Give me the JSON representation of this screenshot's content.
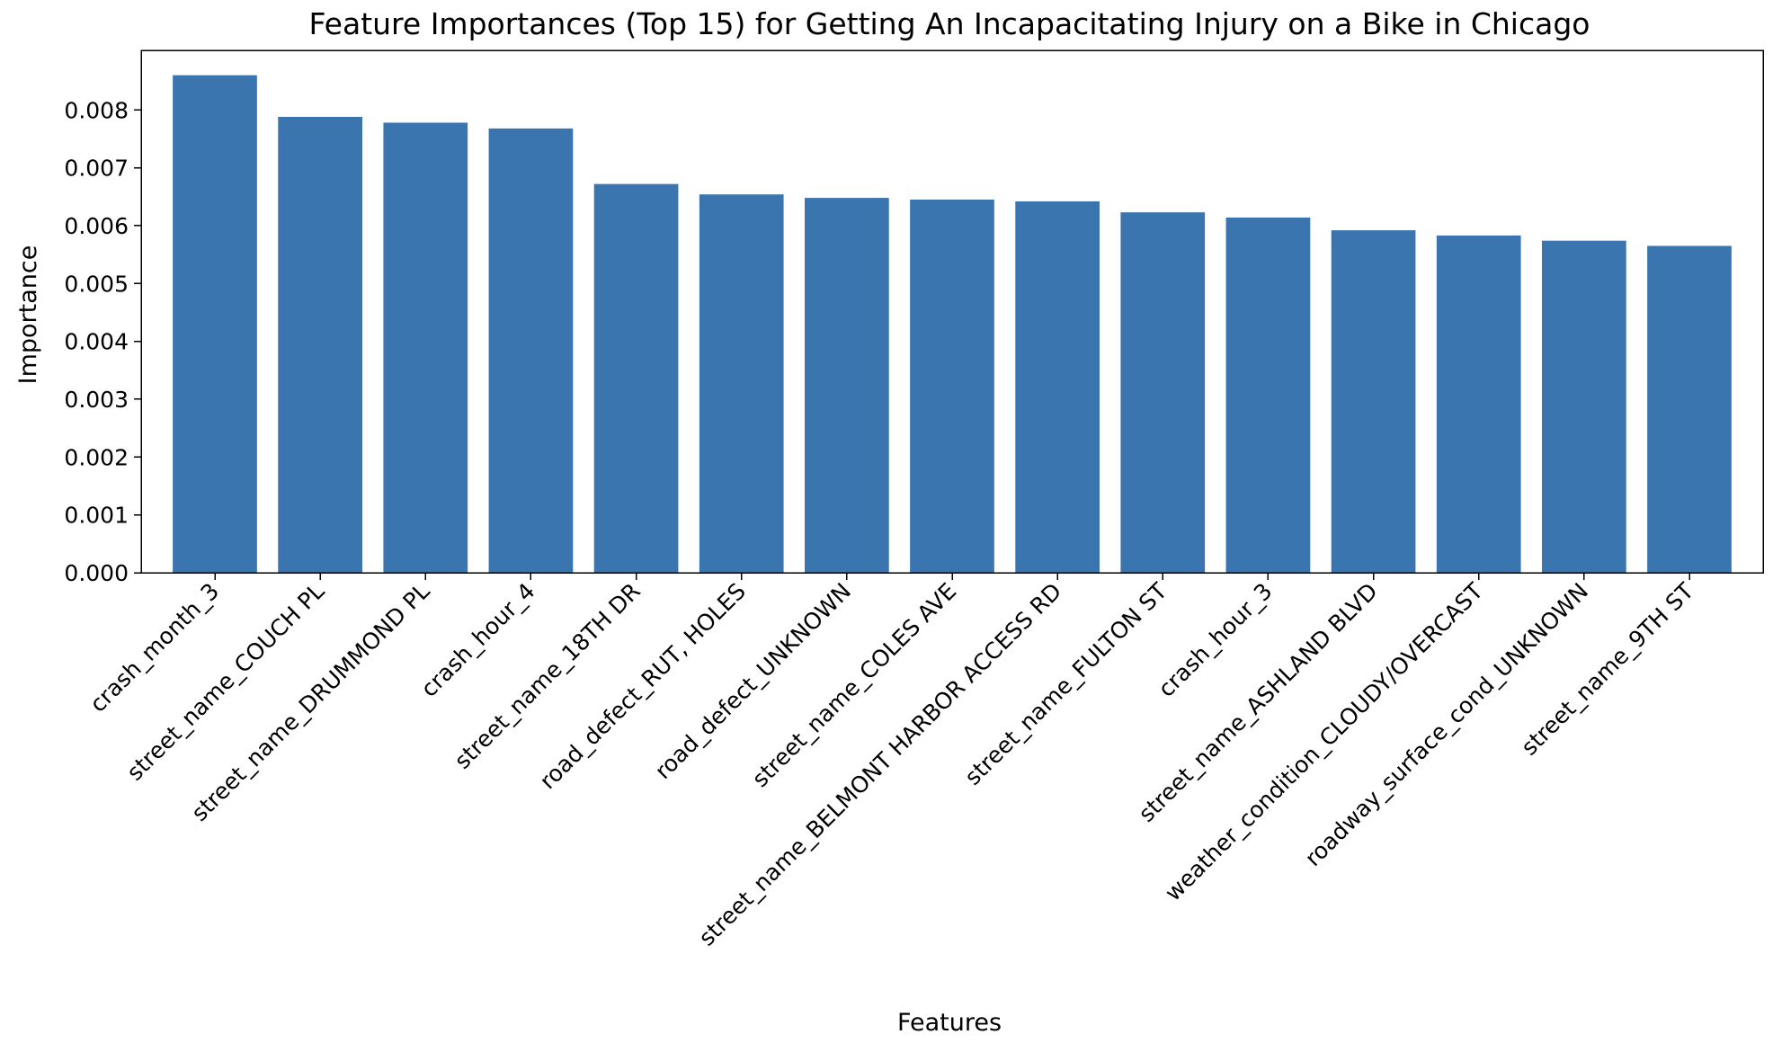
{
  "chart_data": {
    "type": "bar",
    "title": "Feature Importances (Top 15) for Getting An Incapacitating Injury on a Bike in Chicago",
    "xlabel": "Features",
    "ylabel": "Importance",
    "categories": [
      "crash_month_3",
      "street_name_COUCH PL",
      "street_name_DRUMMOND PL",
      "crash_hour_4",
      "street_name_18TH DR",
      "road_defect_RUT, HOLES",
      "road_defect_UNKNOWN",
      "street_name_COLES AVE",
      "street_name_BELMONT HARBOR ACCESS RD",
      "street_name_FULTON ST",
      "crash_hour_3",
      "street_name_ASHLAND BLVD",
      "weather_condition_CLOUDY/OVERCAST",
      "roadway_surface_cond_UNKNOWN",
      "street_name_9TH ST"
    ],
    "values": [
      0.0086,
      0.00788,
      0.00778,
      0.00768,
      0.00672,
      0.00654,
      0.00648,
      0.00645,
      0.00642,
      0.00623,
      0.00614,
      0.00592,
      0.00583,
      0.00574,
      0.00565
    ],
    "yticks": [
      "0.000",
      "0.001",
      "0.002",
      "0.003",
      "0.004",
      "0.005",
      "0.006",
      "0.007",
      "0.008"
    ],
    "ylim": [
      0,
      0.00903
    ],
    "bar_color": "#3a75af",
    "grid": false,
    "legend": "none"
  }
}
